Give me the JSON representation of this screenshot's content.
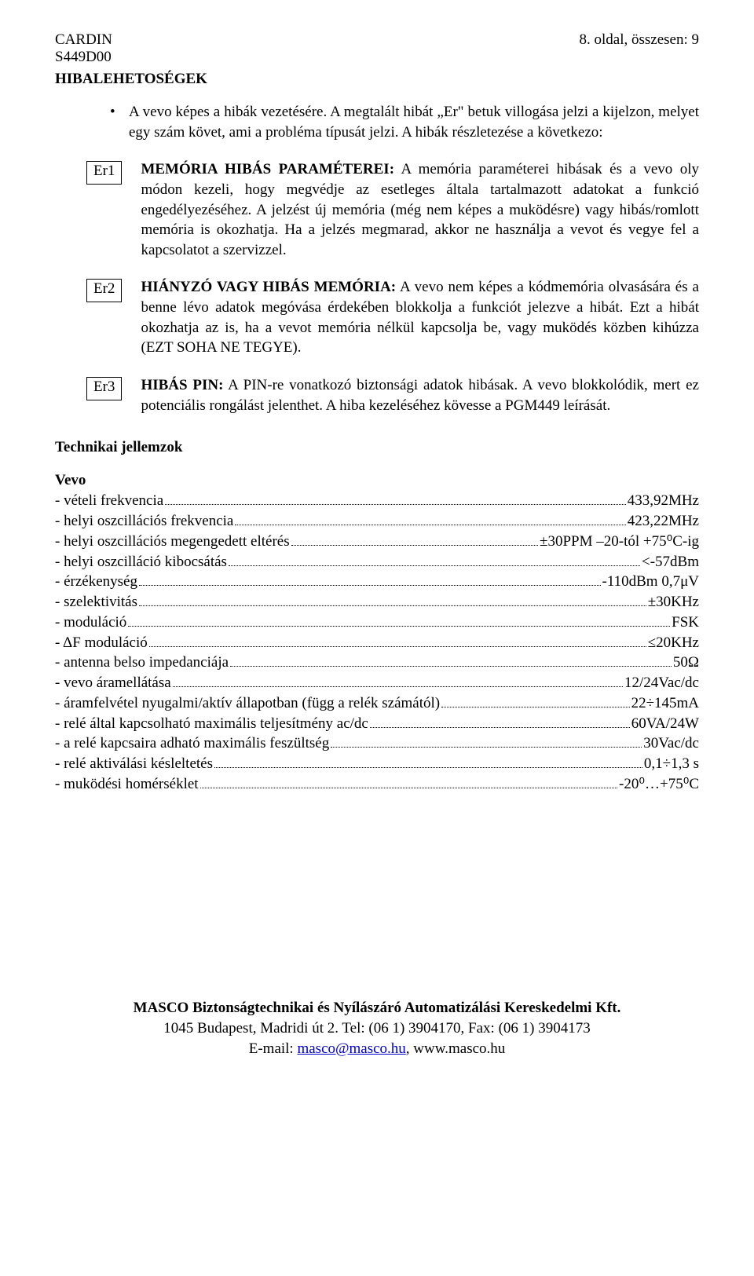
{
  "header": {
    "left1": "CARDIN",
    "left2": "S449D00",
    "right": "8. oldal, összesen: 9"
  },
  "section_title": "HIBALEHETOSÉGEK",
  "intro": {
    "bullet": "•",
    "p1": "A vevo képes a hibák vezetésére. A megtalált hibát „Er\" betuk villogása jelzi a kijelzon, melyet egy szám követ, ami a probléma típusát jelzi. A hibák részletezése a következo:"
  },
  "errors": [
    {
      "code": "Er1",
      "title": "MEMÓRIA HIBÁS PARAMÉTEREI:",
      "body": " A memória paraméterei hibásak és a vevo oly módon kezeli, hogy megvédje az esetleges általa tartalmazott adatokat a funkció engedélyezéséhez. A jelzést új memória (még nem képes a muködésre) vagy hibás/romlott memória is okozhatja. Ha a jelzés megmarad, akkor ne használja a vevot és vegye fel a kapcsolatot a szervizzel."
    },
    {
      "code": "Er2",
      "title": "HIÁNYZÓ VAGY HIBÁS MEMÓRIA:",
      "body": " A vevo nem képes a kódmemória olvasására és a benne lévo adatok megóvása érdekében blokkolja a funkciót jelezve a hibát. Ezt a hibát okozhatja az is, ha a vevot memória nélkül kapcsolja be, vagy muködés közben kihúzza (EZT SOHA NE TEGYE)."
    },
    {
      "code": "Er3",
      "title": "HIBÁS PIN:",
      "body": " A PIN-re vonatkozó biztonsági adatok hibásak. A vevo blokkolódik, mert ez potenciális rongálást jelenthet. A hiba kezeléséhez kövesse a PGM449 leírását."
    }
  ],
  "tech_title": "Technikai jellemzok",
  "tech_sub": "Vevo",
  "specs": [
    {
      "label": "- vételi frekvencia",
      "value": "433,92MHz"
    },
    {
      "label": "- helyi oszcillációs frekvencia",
      "value": "423,22MHz"
    },
    {
      "label": "- helyi oszcillációs megengedett eltérés",
      "value": "±30PPM –20-tól +75⁰C-ig"
    },
    {
      "label": "- helyi oszcilláció kibocsátás",
      "value": "<-57dBm"
    },
    {
      "label": "- érzékenység",
      "value": "-110dBm 0,7μV"
    },
    {
      "label": "- szelektivitás",
      "value": "±30KHz"
    },
    {
      "label": "- moduláció",
      "value": "FSK"
    },
    {
      "label": "- ΔF moduláció",
      "value": "≤20KHz"
    },
    {
      "label": "- antenna belso impedanciája",
      "value": "50Ω"
    },
    {
      "label": "- vevo áramellátása",
      "value": "12/24Vac/dc"
    },
    {
      "label": "- áramfelvétel nyugalmi/aktív állapotban (függ a relék számától)",
      "value": "22÷145mA"
    },
    {
      "label": "- relé által kapcsolható maximális teljesítmény ac/dc",
      "value": "60VA/24W"
    },
    {
      "label": "- a relé kapcsaira adható maximális feszültség",
      "value": "30Vac/dc"
    },
    {
      "label": "- relé aktiválási késleltetés",
      "value": "0,1÷1,3 s"
    },
    {
      "label": "- muködési homérséklet",
      "value": "-20⁰…+75⁰C"
    }
  ],
  "footer": {
    "line1": "MASCO Biztonságtechnikai és Nyílászáró Automatizálási Kereskedelmi Kft.",
    "line2": "1045 Budapest, Madridi út 2. Tel: (06 1) 3904170, Fax: (06 1) 3904173",
    "line3a": "E-mail: ",
    "mail": "masco@masco.hu",
    "line3b": ", www.masco.hu"
  }
}
